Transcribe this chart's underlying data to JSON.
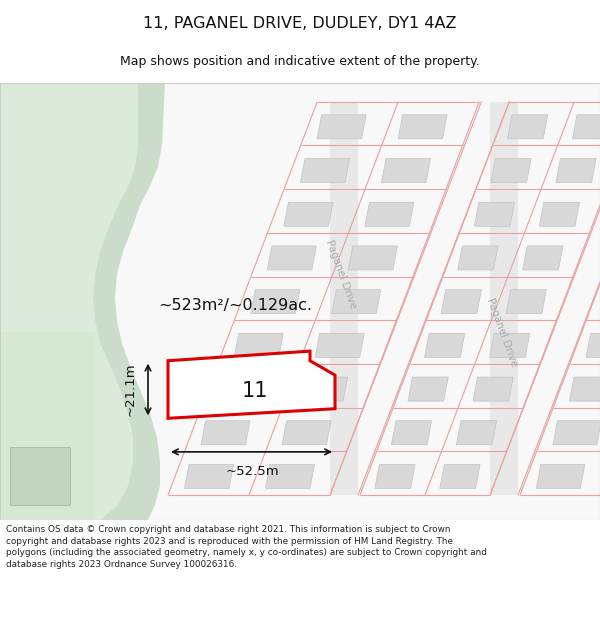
{
  "title": "11, PAGANEL DRIVE, DUDLEY, DY1 4AZ",
  "subtitle": "Map shows position and indicative extent of the property.",
  "footer": "Contains OS data © Crown copyright and database right 2021. This information is subject to Crown copyright and database rights 2023 and is reproduced with the permission of HM Land Registry. The polygons (including the associated geometry, namely x, y co-ordinates) are subject to Crown copyright and database rights 2023 Ordnance Survey 100026316.",
  "background_color": "#ffffff",
  "grid_line_color": "#e8a0a0",
  "building_fill": "#d8d8d8",
  "road_label1": "Paganel Drive",
  "road_label2": "Paganel Drive",
  "property_number": "11",
  "area_label": "~523m²/~0.129ac.",
  "width_label": "~52.5m",
  "height_label": "~21.1m",
  "figsize": [
    6.0,
    6.25
  ],
  "dpi": 100
}
